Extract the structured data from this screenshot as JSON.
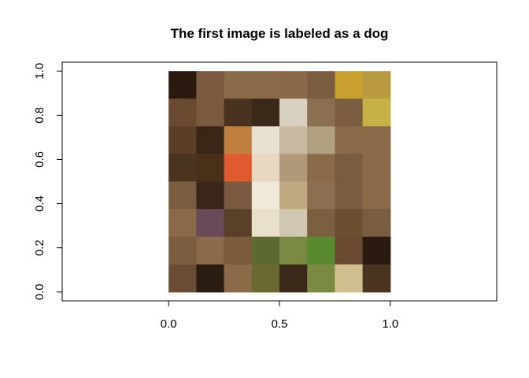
{
  "chart_data": {
    "type": "image",
    "title": "The first image is labeled as a dog",
    "xlabel": "",
    "ylabel": "",
    "xlim": [
      -0.48,
      1.48
    ],
    "ylim": [
      -0.04,
      1.04
    ],
    "x_ticks": [
      0.0,
      0.5,
      1.0
    ],
    "x_tick_labels": [
      "0.0",
      "0.5",
      "1.0"
    ],
    "y_ticks": [
      0.0,
      0.2,
      0.4,
      0.6,
      0.8,
      1.0
    ],
    "y_tick_labels": [
      "0.0",
      "0.2",
      "0.4",
      "0.6",
      "0.8",
      "1.0"
    ],
    "image_extent": {
      "x": [
        0,
        1
      ],
      "y": [
        0,
        1
      ]
    },
    "image_grid": {
      "rows": 8,
      "cols": 8
    },
    "image_colors": [
      [
        "#2a1a10",
        "#7a5a40",
        "#8a6a48",
        "#8a6a4a",
        "#8a6848",
        "#7a5c40",
        "#c8a030",
        "#b89a40"
      ],
      [
        "#6a4a30",
        "#7a5a3e",
        "#4a3220",
        "#3a2818",
        "#d8d0c0",
        "#8a7050",
        "#7a5c40",
        "#c8b048"
      ],
      [
        "#5a3e28",
        "#3a2616",
        "#c08040",
        "#e8e0d0",
        "#c8b8a0",
        "#b0a080",
        "#8a6a4a",
        "#8a6a48"
      ],
      [
        "#4a3420",
        "#4a3018",
        "#e05a30",
        "#e8d8c0",
        "#b09878",
        "#8a6a48",
        "#7a5c40",
        "#8a6a48"
      ],
      [
        "#7a5c40",
        "#3a2618",
        "#7a5a40",
        "#f0e8d8",
        "#c0a880",
        "#8a7050",
        "#7a5c40",
        "#8a6a48"
      ],
      [
        "#8a6a48",
        "#6a4a58",
        "#5a4028",
        "#e8e0c8",
        "#d0c8b0",
        "#7a6040",
        "#6a5030",
        "#7a5c40"
      ],
      [
        "#7a5c40",
        "#8a6a48",
        "#7a5a3a",
        "#5a6a30",
        "#7a8a40",
        "#5a8a30",
        "#6a4a30",
        "#2a1a10"
      ],
      [
        "#6a4c34",
        "#2a1c10",
        "#8a6a48",
        "#6a6a30",
        "#3a2818",
        "#7a8a40",
        "#d0c090",
        "#4a3420"
      ]
    ]
  }
}
